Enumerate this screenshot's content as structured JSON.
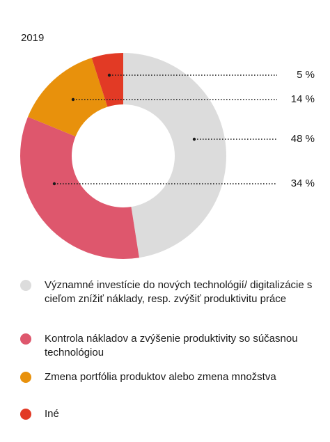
{
  "year_label": "2019",
  "chart_data": {
    "type": "pie",
    "subtype": "donut",
    "title": "2019",
    "categories": [
      "Významné investície do nových technológií/ digitalizácie s cieľom znížiť náklady, resp. zvýšiť produktivitu práce",
      "Kontrola nákladov a zvýšenie produktivity so súčasnou technológiou",
      "Zmena portfólia produktov alebo zmena množstva",
      "Iné"
    ],
    "values": [
      48,
      34,
      14,
      5
    ],
    "value_labels": [
      "48 %",
      "34 %",
      "14 %",
      "5 %"
    ],
    "colors": [
      "#dcdcdc",
      "#de576d",
      "#e8910c",
      "#e23a25"
    ]
  },
  "legend": [
    {
      "label": "Významné investície do nových technológií/ digitalizácie s cieľom znížiť náklady, resp. zvýšiť produktivitu práce",
      "color": "#dcdcdc"
    },
    {
      "label": "Kontrola nákladov a zvýšenie produktivity so súčasnou technológiou",
      "color": "#de576d"
    },
    {
      "label": "Zmena portfólia produktov alebo zmena množstva",
      "color": "#e8910c"
    },
    {
      "label": "Iné",
      "color": "#e23a25"
    }
  ]
}
